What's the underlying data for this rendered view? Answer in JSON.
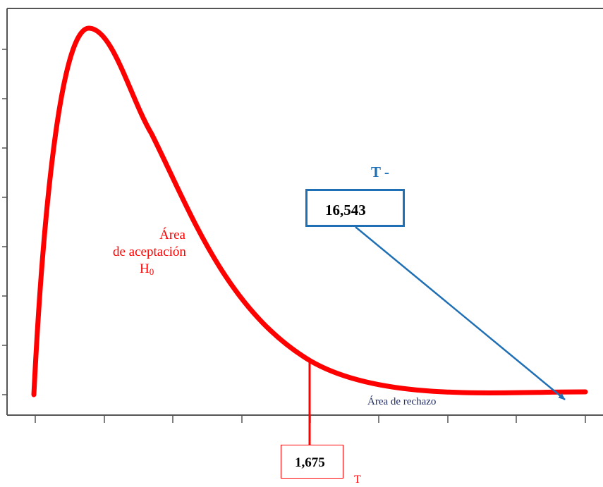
{
  "labels": {
    "acceptance_line1": "Área",
    "acceptance_line2": "de aceptación",
    "acceptance_h": "H",
    "acceptance_sub": "0",
    "rejection": "Área de rechazo",
    "t_upper": "T  -",
    "t_lower": "T",
    "observed_value": "16,543",
    "critical_value": "1,675"
  },
  "colors": {
    "curve": "#ff0000",
    "arrow": "#1f6fb5",
    "frame": "#555555"
  }
}
